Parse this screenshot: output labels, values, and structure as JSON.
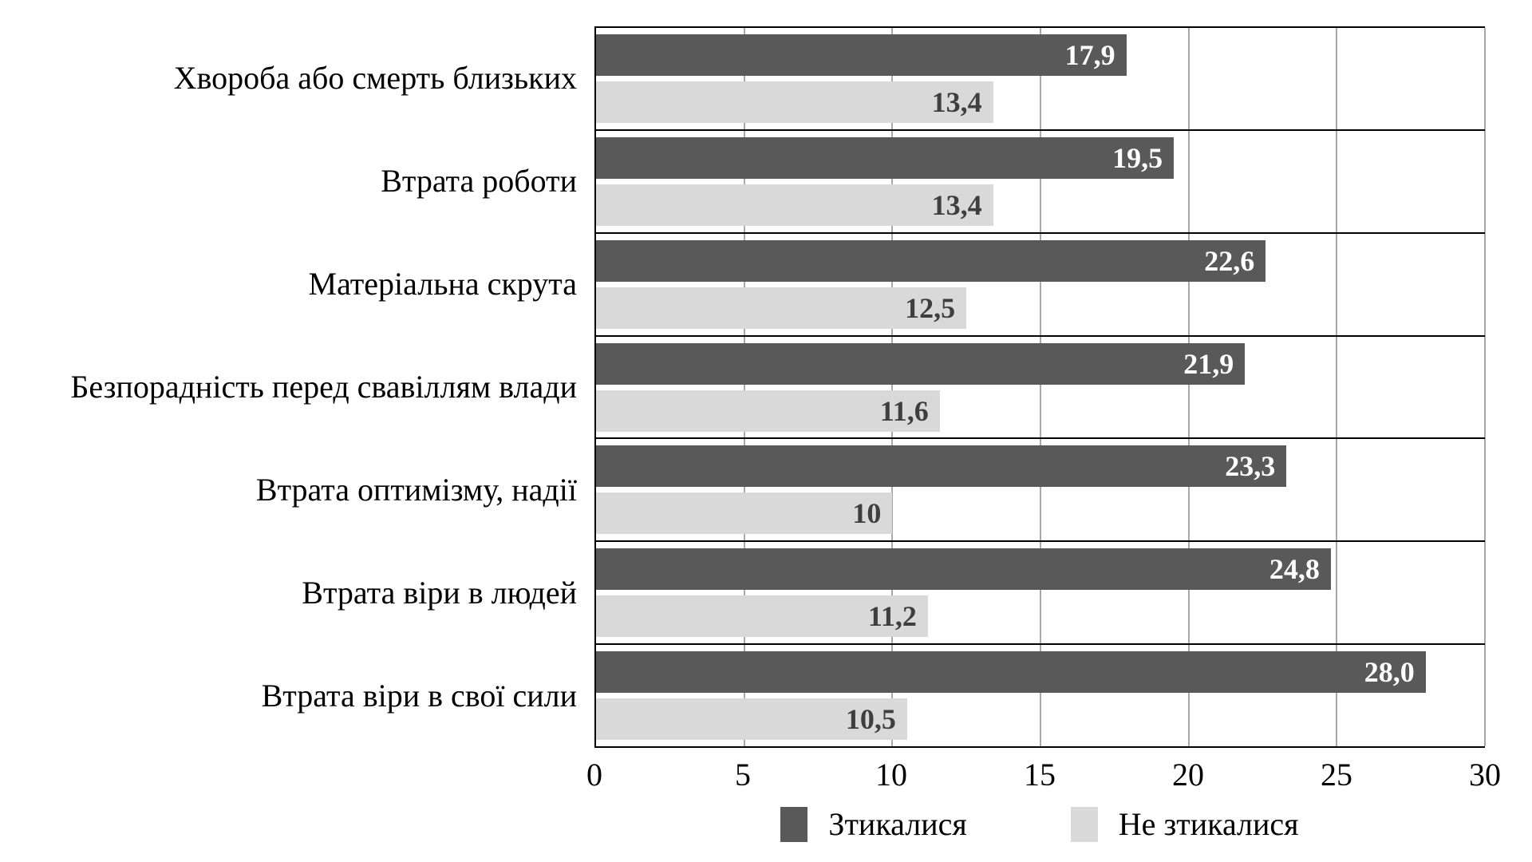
{
  "chart_data": {
    "type": "bar",
    "orientation": "horizontal",
    "title": "",
    "xlabel": "",
    "ylabel": "",
    "categories": [
      "Хвороба або смерть близьких",
      "Втрата роботи",
      "Матеріальна скрута",
      "Безпорадність перед свавіллям влади",
      "Втрата оптимізму, надії",
      "Втрата віри в людей",
      "Втрата віри в свої сили"
    ],
    "series": [
      {
        "name": "Зтикалися",
        "color": "#595959",
        "label_color": "#ffffff",
        "values": [
          17.9,
          19.5,
          22.6,
          21.9,
          23.3,
          24.8,
          28.0
        ],
        "labels": [
          "17,9",
          "19,5",
          "22,6",
          "21,9",
          "23,3",
          "24,8",
          "28,0"
        ]
      },
      {
        "name": "Не зтикалися",
        "color": "#d9d9d9",
        "label_color": "#3f3f3f",
        "values": [
          13.4,
          13.4,
          12.5,
          11.6,
          10,
          11.2,
          10.5
        ],
        "labels": [
          "13,4",
          "13,4",
          "12,5",
          "11,6",
          "10",
          "11,2",
          "10,5"
        ]
      }
    ],
    "xlim": [
      0,
      30
    ],
    "x_ticks": [
      "0",
      "5",
      "10",
      "15",
      "20",
      "25",
      "30"
    ],
    "grid": "vertical",
    "legend_position": "bottom",
    "background_color": "#ffffff",
    "gridline_color": "#a8a8a8"
  }
}
